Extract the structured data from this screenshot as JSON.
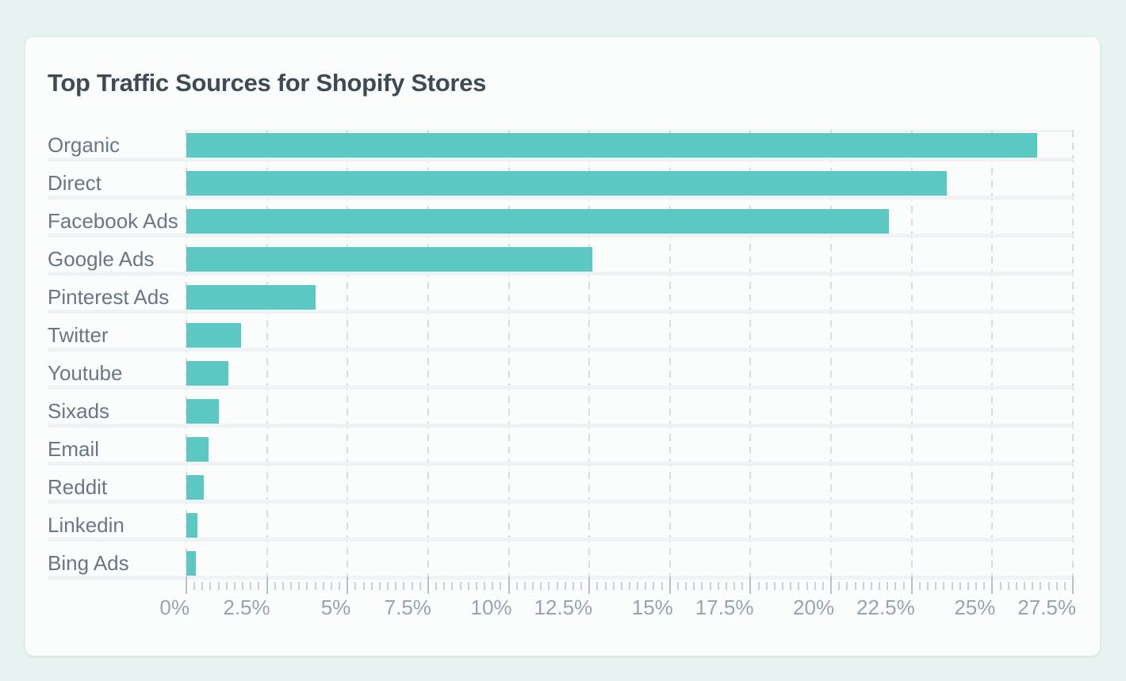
{
  "page": {
    "background_color": "#e7f3f0"
  },
  "card": {
    "background_color": "#fbfdfc"
  },
  "chart_data": {
    "type": "bar",
    "orientation": "horizontal",
    "title": "Top Traffic Sources for Shopify Stores",
    "categories": [
      "Organic",
      "Direct",
      "Facebook Ads",
      "Google Ads",
      "Pinterest Ads",
      "Twitter",
      "Youtube",
      "Sixads",
      "Email",
      "Reddit",
      "Linkedin",
      "Bing Ads"
    ],
    "values": [
      26.4,
      23.6,
      21.8,
      12.6,
      4.0,
      1.7,
      1.3,
      1.0,
      0.7,
      0.55,
      0.35,
      0.3
    ],
    "value_unit": "%",
    "xlabel": "",
    "ylabel": "",
    "xlim": [
      0,
      27.5
    ],
    "x_tick_labels": [
      "0%",
      "2.5%",
      "5%",
      "7.5%",
      "10%",
      "12.5%",
      "15%",
      "17.5%",
      "20%",
      "22.5%",
      "25%",
      "27.5%"
    ],
    "x_major_tick_step": 2.5,
    "x_minor_tick_step": 0.25,
    "grid": "vertical dashed major gridlines",
    "legend": "none",
    "bar_color": "#5cc8c2",
    "title_color": "#3e4b55",
    "category_label_color": "#6b7684",
    "axis_label_color": "#97a3af"
  }
}
